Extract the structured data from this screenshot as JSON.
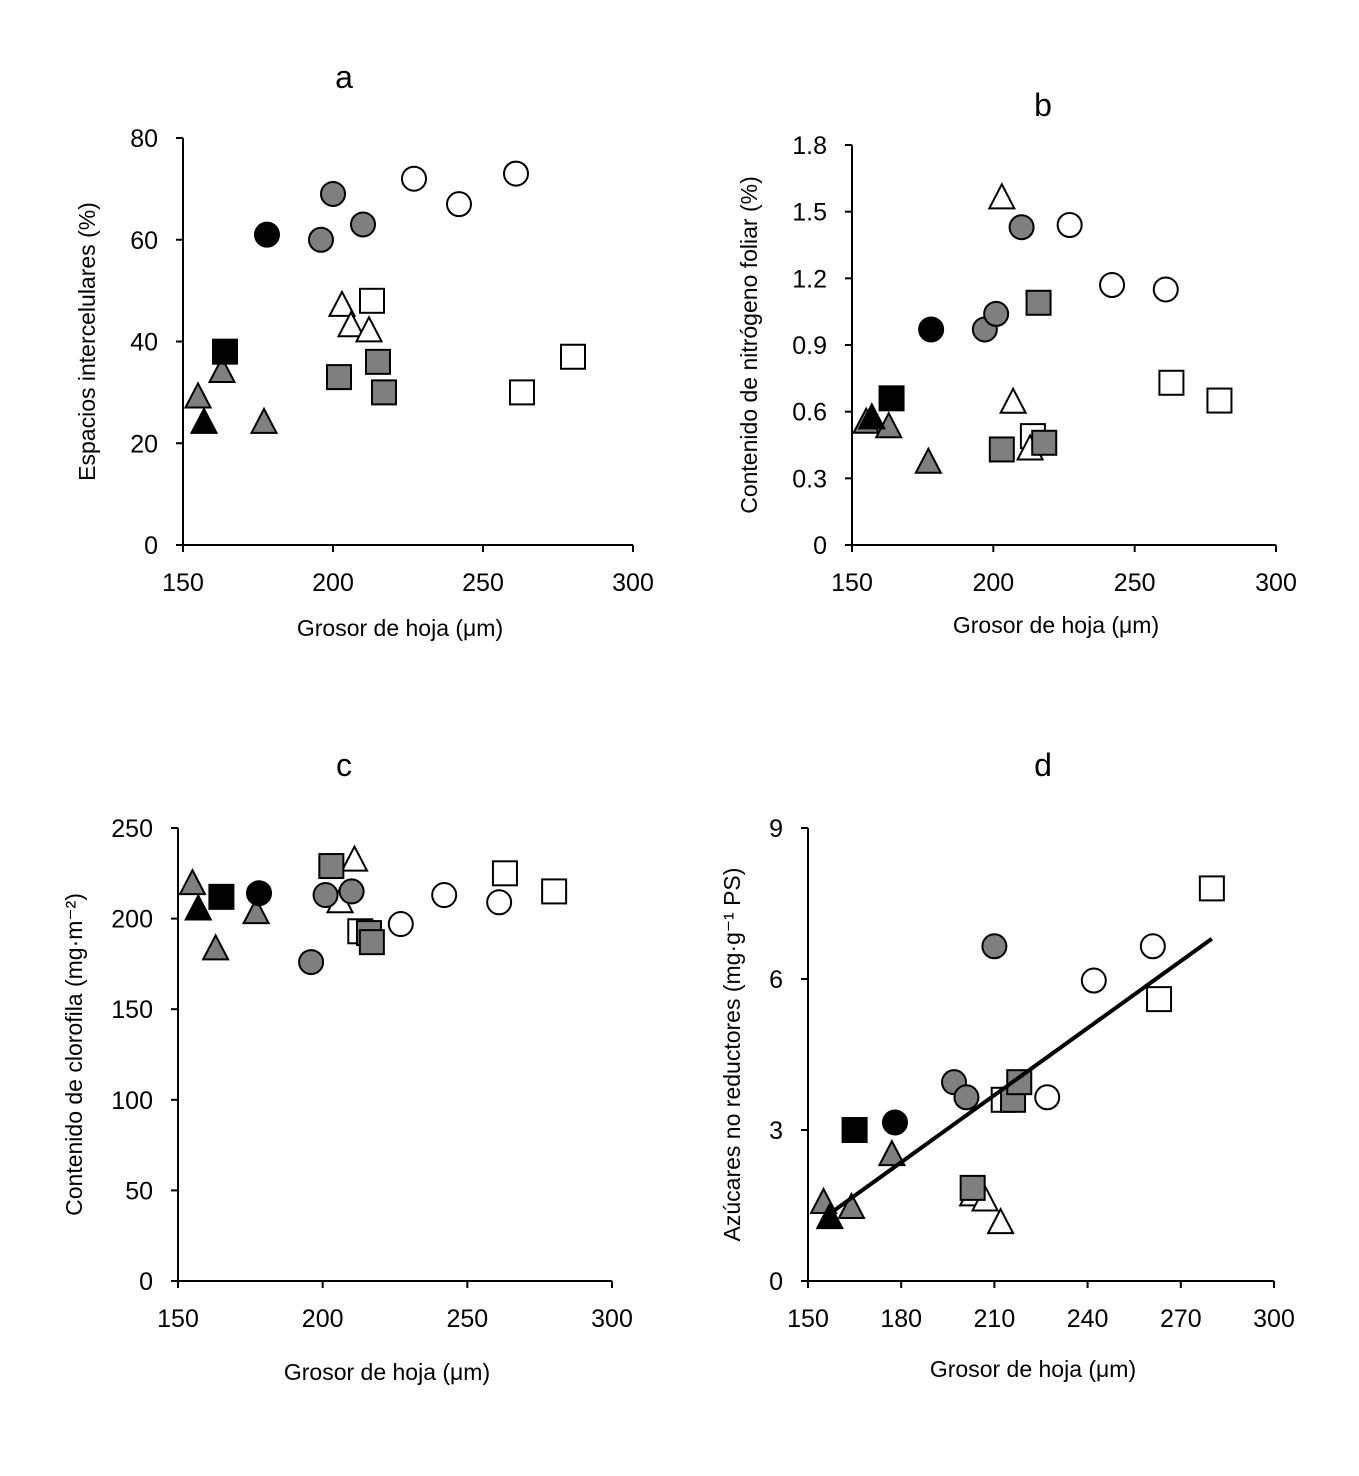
{
  "colors": {
    "black": "#000000",
    "gray": "#7f7f7f",
    "white": "#ffffff"
  },
  "chart_data": [
    {
      "id": "a",
      "type": "scatter",
      "title": "a",
      "xlabel": "Grosor de hoja (μm)",
      "ylabel": "Espacios intercelulares (%)",
      "xlim": [
        150,
        300
      ],
      "ylim": [
        0,
        80
      ],
      "xticks": [
        150,
        200,
        250,
        300
      ],
      "yticks": [
        0,
        20,
        40,
        60,
        80
      ],
      "points": [
        {
          "x": 178,
          "y": 61,
          "shape": "circle",
          "fill": "black"
        },
        {
          "x": 196,
          "y": 60,
          "shape": "circle",
          "fill": "gray"
        },
        {
          "x": 200,
          "y": 69,
          "shape": "circle",
          "fill": "gray"
        },
        {
          "x": 210,
          "y": 63,
          "shape": "circle",
          "fill": "gray"
        },
        {
          "x": 227,
          "y": 72,
          "shape": "circle",
          "fill": "white"
        },
        {
          "x": 242,
          "y": 67,
          "shape": "circle",
          "fill": "white"
        },
        {
          "x": 261,
          "y": 73,
          "shape": "circle",
          "fill": "white"
        },
        {
          "x": 164,
          "y": 38,
          "shape": "square",
          "fill": "black"
        },
        {
          "x": 202,
          "y": 33,
          "shape": "square",
          "fill": "gray"
        },
        {
          "x": 215,
          "y": 36,
          "shape": "square",
          "fill": "gray"
        },
        {
          "x": 217,
          "y": 30,
          "shape": "square",
          "fill": "gray"
        },
        {
          "x": 213,
          "y": 48,
          "shape": "square",
          "fill": "white"
        },
        {
          "x": 263,
          "y": 30,
          "shape": "square",
          "fill": "white"
        },
        {
          "x": 280,
          "y": 37,
          "shape": "square",
          "fill": "white"
        },
        {
          "x": 157,
          "y": 24,
          "shape": "triangle",
          "fill": "black"
        },
        {
          "x": 155,
          "y": 29,
          "shape": "triangle",
          "fill": "gray"
        },
        {
          "x": 163,
          "y": 34,
          "shape": "triangle",
          "fill": "gray"
        },
        {
          "x": 177,
          "y": 24,
          "shape": "triangle",
          "fill": "gray"
        },
        {
          "x": 203,
          "y": 47,
          "shape": "triangle",
          "fill": "white"
        },
        {
          "x": 206,
          "y": 43,
          "shape": "triangle",
          "fill": "white"
        },
        {
          "x": 212,
          "y": 42,
          "shape": "triangle",
          "fill": "white"
        }
      ]
    },
    {
      "id": "b",
      "type": "scatter",
      "title": "b",
      "xlabel": "Grosor de hoja (μm)",
      "ylabel": "Contenido de nitrógeno foliar (%)",
      "xlim": [
        150,
        300
      ],
      "ylim": [
        0,
        1.8
      ],
      "xticks": [
        150,
        200,
        250,
        300
      ],
      "yticks": [
        0,
        0.3,
        0.6,
        0.9,
        1.2,
        1.5,
        1.8
      ],
      "ytick_labels": [
        "0",
        "0.3",
        "0.6",
        "0.9",
        "1.2",
        "1.5",
        "1.8"
      ],
      "points": [
        {
          "x": 178,
          "y": 0.97,
          "shape": "circle",
          "fill": "black"
        },
        {
          "x": 197,
          "y": 0.97,
          "shape": "circle",
          "fill": "gray"
        },
        {
          "x": 201,
          "y": 1.04,
          "shape": "circle",
          "fill": "gray"
        },
        {
          "x": 210,
          "y": 1.43,
          "shape": "circle",
          "fill": "gray"
        },
        {
          "x": 227,
          "y": 1.44,
          "shape": "circle",
          "fill": "white"
        },
        {
          "x": 242,
          "y": 1.17,
          "shape": "circle",
          "fill": "white"
        },
        {
          "x": 261,
          "y": 1.15,
          "shape": "circle",
          "fill": "white"
        },
        {
          "x": 164,
          "y": 0.66,
          "shape": "square",
          "fill": "black"
        },
        {
          "x": 203,
          "y": 0.43,
          "shape": "square",
          "fill": "gray"
        },
        {
          "x": 218,
          "y": 0.46,
          "shape": "square",
          "fill": "gray"
        },
        {
          "x": 216,
          "y": 1.09,
          "shape": "square",
          "fill": "gray"
        },
        {
          "x": 214,
          "y": 0.49,
          "shape": "square",
          "fill": "white"
        },
        {
          "x": 263,
          "y": 0.73,
          "shape": "square",
          "fill": "white"
        },
        {
          "x": 280,
          "y": 0.65,
          "shape": "square",
          "fill": "white"
        },
        {
          "x": 157,
          "y": 0.57,
          "shape": "triangle",
          "fill": "black"
        },
        {
          "x": 155,
          "y": 0.55,
          "shape": "triangle",
          "fill": "gray"
        },
        {
          "x": 163,
          "y": 0.53,
          "shape": "triangle",
          "fill": "gray"
        },
        {
          "x": 177,
          "y": 0.37,
          "shape": "triangle",
          "fill": "gray"
        },
        {
          "x": 203,
          "y": 1.56,
          "shape": "triangle",
          "fill": "white"
        },
        {
          "x": 207,
          "y": 0.64,
          "shape": "triangle",
          "fill": "white"
        },
        {
          "x": 213,
          "y": 0.43,
          "shape": "triangle",
          "fill": "white"
        }
      ]
    },
    {
      "id": "c",
      "type": "scatter",
      "title": "c",
      "xlabel": "Grosor de hoja (μm)",
      "ylabel": "Contenido de clorofila (mg·m⁻²)",
      "xlim": [
        150,
        300
      ],
      "ylim": [
        0,
        250
      ],
      "xticks": [
        150,
        200,
        250,
        300
      ],
      "yticks": [
        0,
        50,
        100,
        150,
        200,
        250
      ],
      "points": [
        {
          "x": 178,
          "y": 214,
          "shape": "circle",
          "fill": "black"
        },
        {
          "x": 196,
          "y": 176,
          "shape": "circle",
          "fill": "gray"
        },
        {
          "x": 201,
          "y": 213,
          "shape": "circle",
          "fill": "gray"
        },
        {
          "x": 210,
          "y": 215,
          "shape": "circle",
          "fill": "gray"
        },
        {
          "x": 227,
          "y": 197,
          "shape": "circle",
          "fill": "white"
        },
        {
          "x": 242,
          "y": 213,
          "shape": "circle",
          "fill": "white"
        },
        {
          "x": 261,
          "y": 209,
          "shape": "circle",
          "fill": "white"
        },
        {
          "x": 165,
          "y": 212,
          "shape": "square",
          "fill": "black"
        },
        {
          "x": 203,
          "y": 229,
          "shape": "square",
          "fill": "gray"
        },
        {
          "x": 216,
          "y": 192,
          "shape": "square",
          "fill": "gray"
        },
        {
          "x": 217,
          "y": 187,
          "shape": "square",
          "fill": "gray"
        },
        {
          "x": 213,
          "y": 193,
          "shape": "square",
          "fill": "white"
        },
        {
          "x": 263,
          "y": 225,
          "shape": "square",
          "fill": "white"
        },
        {
          "x": 280,
          "y": 215,
          "shape": "square",
          "fill": "white"
        },
        {
          "x": 157,
          "y": 205,
          "shape": "triangle",
          "fill": "black"
        },
        {
          "x": 155,
          "y": 219,
          "shape": "triangle",
          "fill": "gray"
        },
        {
          "x": 163,
          "y": 183,
          "shape": "triangle",
          "fill": "gray"
        },
        {
          "x": 177,
          "y": 203,
          "shape": "triangle",
          "fill": "gray"
        },
        {
          "x": 206,
          "y": 209,
          "shape": "triangle",
          "fill": "white"
        },
        {
          "x": 211,
          "y": 232,
          "shape": "triangle",
          "fill": "white"
        }
      ]
    },
    {
      "id": "d",
      "type": "scatter",
      "title": "d",
      "xlabel": "Grosor de hoja (μm)",
      "ylabel": "Azúcares no reductores (mg·g⁻¹ PS)",
      "xlim": [
        150,
        300
      ],
      "ylim": [
        0,
        9
      ],
      "xticks": [
        150,
        180,
        210,
        240,
        270,
        300
      ],
      "yticks": [
        0,
        3,
        6,
        9
      ],
      "trendline": {
        "x": [
          155,
          280
        ],
        "y": [
          1.25,
          6.8
        ]
      },
      "points": [
        {
          "x": 178,
          "y": 3.15,
          "shape": "circle",
          "fill": "black"
        },
        {
          "x": 197,
          "y": 3.95,
          "shape": "circle",
          "fill": "gray"
        },
        {
          "x": 201,
          "y": 3.65,
          "shape": "circle",
          "fill": "gray"
        },
        {
          "x": 210,
          "y": 6.65,
          "shape": "circle",
          "fill": "gray"
        },
        {
          "x": 227,
          "y": 3.65,
          "shape": "circle",
          "fill": "white"
        },
        {
          "x": 242,
          "y": 5.97,
          "shape": "circle",
          "fill": "white"
        },
        {
          "x": 261,
          "y": 6.65,
          "shape": "circle",
          "fill": "white"
        },
        {
          "x": 165,
          "y": 3.0,
          "shape": "square",
          "fill": "black"
        },
        {
          "x": 203,
          "y": 1.85,
          "shape": "square",
          "fill": "gray"
        },
        {
          "x": 216,
          "y": 3.6,
          "shape": "square",
          "fill": "gray"
        },
        {
          "x": 218,
          "y": 3.95,
          "shape": "square",
          "fill": "gray"
        },
        {
          "x": 213,
          "y": 3.6,
          "shape": "square",
          "fill": "white"
        },
        {
          "x": 263,
          "y": 5.6,
          "shape": "square",
          "fill": "white"
        },
        {
          "x": 280,
          "y": 7.8,
          "shape": "square",
          "fill": "white"
        },
        {
          "x": 157,
          "y": 1.25,
          "shape": "triangle",
          "fill": "black"
        },
        {
          "x": 155,
          "y": 1.55,
          "shape": "triangle",
          "fill": "gray"
        },
        {
          "x": 164,
          "y": 1.45,
          "shape": "triangle",
          "fill": "gray"
        },
        {
          "x": 177,
          "y": 2.5,
          "shape": "triangle",
          "fill": "gray"
        },
        {
          "x": 203,
          "y": 1.7,
          "shape": "triangle",
          "fill": "white"
        },
        {
          "x": 207,
          "y": 1.6,
          "shape": "triangle",
          "fill": "white"
        },
        {
          "x": 212,
          "y": 1.15,
          "shape": "triangle",
          "fill": "white"
        }
      ]
    }
  ]
}
